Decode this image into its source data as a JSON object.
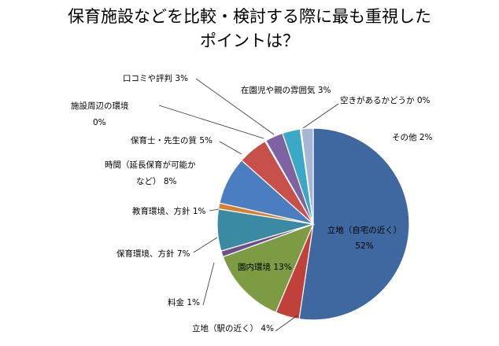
{
  "title_lines": [
    "保育施設などを比較・検討する際に最も重視した",
    "ポイントは？"
  ],
  "chart_data": {
    "type": "pie",
    "title": "保育施設などを比較・検討する際に最も重視したポイントは？",
    "start_angle_deg": 0,
    "direction": "clockwise",
    "slices": [
      {
        "label": "立地（自宅の近く）",
        "value": 52,
        "display": [
          "立地（自宅の近く）",
          "52%"
        ],
        "color": "#3f68a0"
      },
      {
        "label": "立地（駅の近く）",
        "value": 4,
        "display": [
          "立地（駅の近く） 4%"
        ],
        "color": "#c0413b"
      },
      {
        "label": "園内環境",
        "value": 13,
        "display": [
          "園内環境 13%"
        ],
        "color": "#7d9b43"
      },
      {
        "label": "料金",
        "value": 1,
        "display": [
          "料金 1%"
        ],
        "color": "#6d4f8e"
      },
      {
        "label": "保育環境、方針",
        "value": 7,
        "display": [
          "保育環境、方針 7%"
        ],
        "color": "#3a8aa3"
      },
      {
        "label": "教育環境、方針",
        "value": 1,
        "display": [
          "教育環境、方針 1%"
        ],
        "color": "#d9802d"
      },
      {
        "label": "時間（延長保育が可能かなど）",
        "value": 8,
        "display": [
          "時間（延長保育が可能か",
          "など） 8%"
        ],
        "color": "#4b7ec1"
      },
      {
        "label": "保育士・先生の質",
        "value": 5,
        "display": [
          "保育士・先生の質 5%"
        ],
        "color": "#c8504b"
      },
      {
        "label": "施設周辺の環境",
        "value": 0,
        "display": [
          "施設周辺の環境",
          "0%"
        ],
        "color": "#9bb85c"
      },
      {
        "label": "口コミや評判",
        "value": 3,
        "display": [
          "口コミや評判 3%"
        ],
        "color": "#7e62a1"
      },
      {
        "label": "在園児や親の雰囲気",
        "value": 3,
        "display": [
          "在園児や親の雰囲気 3%"
        ],
        "color": "#3ba9c6"
      },
      {
        "label": "空きがあるかどうか",
        "value": 0,
        "display": [
          "空きがあるかどうか 0%"
        ],
        "color": "#f39b3c"
      },
      {
        "label": "その他",
        "value": 2,
        "display": [
          "その他 2%"
        ],
        "color": "#a7b6d4"
      }
    ]
  }
}
